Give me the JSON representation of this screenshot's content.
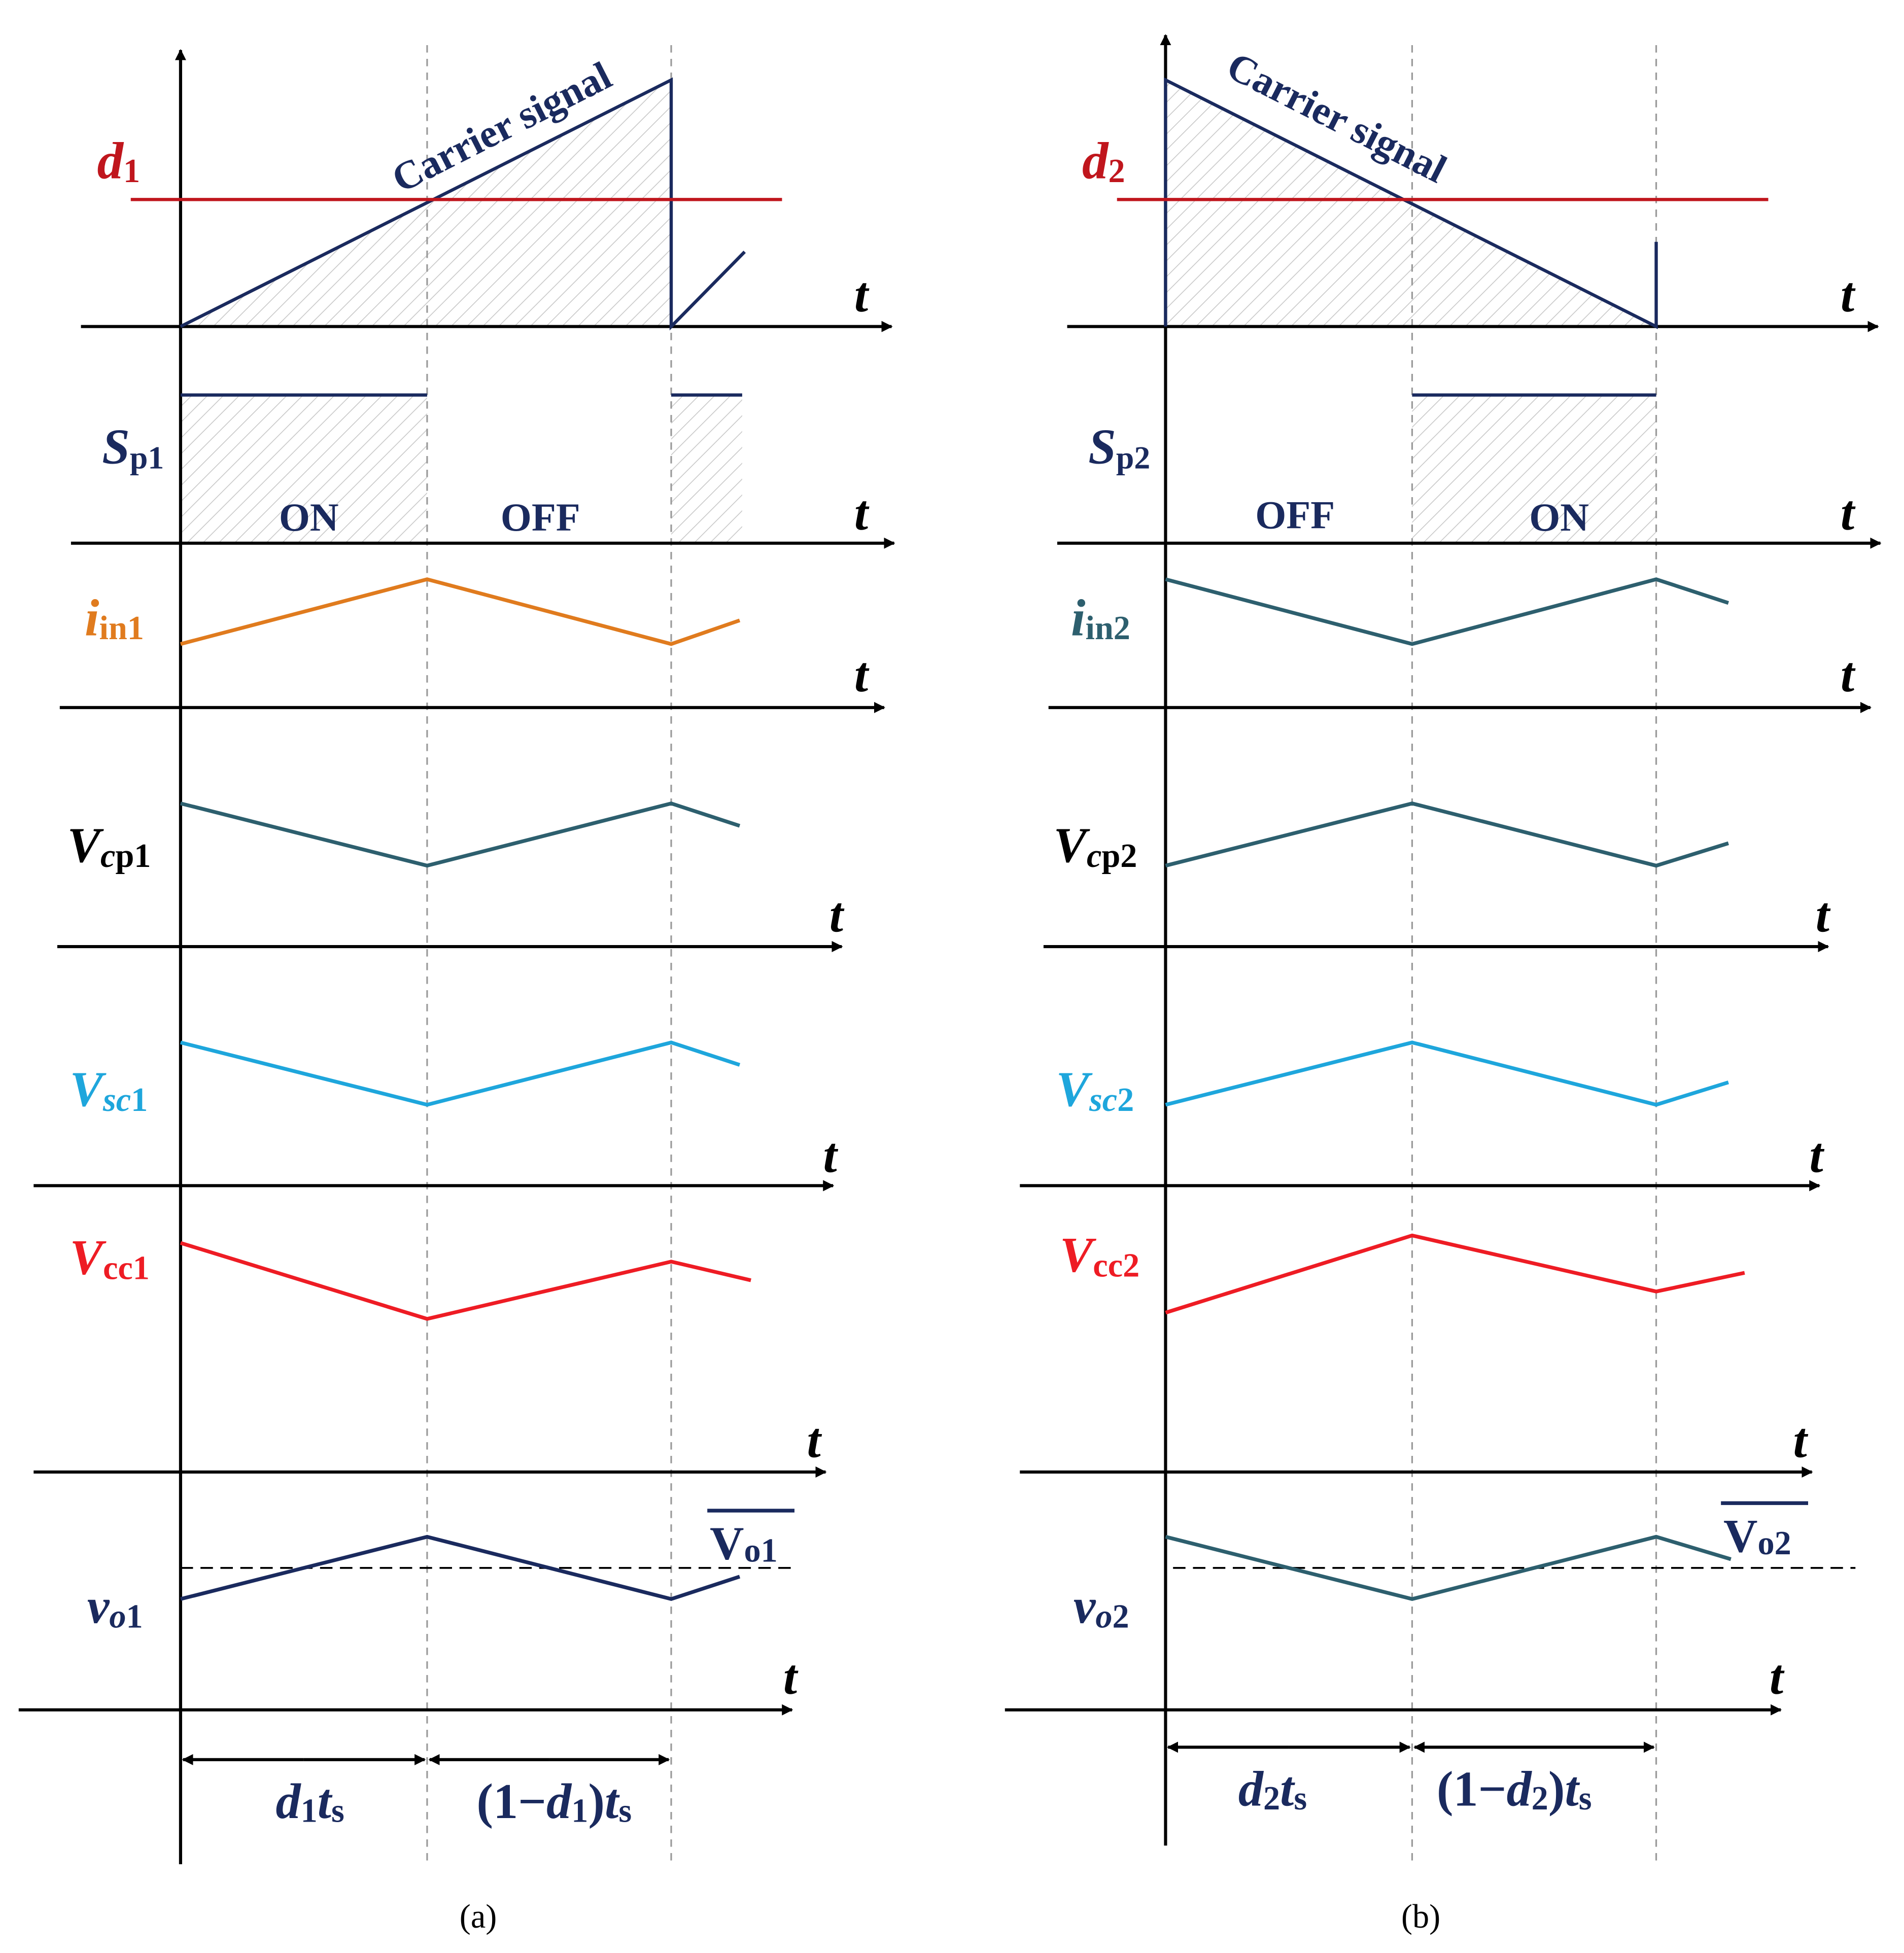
{
  "colors": {
    "navy": "#1a2a5e",
    "red_d": "#c0161d",
    "orange": "#e07b1e",
    "teal": "#2d5f6e",
    "cyan": "#1ea6dc",
    "red": "#ee1c24",
    "dash": "#9a9a9a",
    "hatch": "#c8c8c8"
  },
  "axis_symbol": "t",
  "carrier_label": "Carrier signal",
  "panels": [
    {
      "id": "a",
      "caption": "(a)",
      "duty": {
        "sym": "d",
        "sub": "1"
      },
      "switch": {
        "sym": "S",
        "sub": "p1",
        "first_state": "ON",
        "second_state": "OFF"
      },
      "signals": [
        {
          "key": "iin",
          "sym": "i",
          "sub": "in1",
          "style": "italic-sym"
        },
        {
          "key": "vcp",
          "sym": "V",
          "sub1": "c",
          "sub2": "p1"
        },
        {
          "key": "vsc",
          "sym": "V",
          "sub1": "sc",
          "sub2": "1"
        },
        {
          "key": "vcc",
          "sym": "V",
          "sub": "cc1"
        },
        {
          "key": "vo",
          "sym": "v",
          "sub1": "o",
          "sub2": "1"
        }
      ],
      "avg_label": {
        "sym": "V",
        "sub": "o1"
      },
      "interval1": {
        "parts": [
          "d",
          "1",
          "t",
          "s"
        ]
      },
      "interval2": {
        "parts": [
          "(1−",
          "d",
          "1",
          ")",
          "t",
          "s"
        ]
      }
    },
    {
      "id": "b",
      "caption": "(b)",
      "duty": {
        "sym": "d",
        "sub": "2"
      },
      "switch": {
        "sym": "S",
        "sub": "p2",
        "first_state": "OFF",
        "second_state": "ON"
      },
      "signals": [
        {
          "key": "iin",
          "sym": "i",
          "sub": "in2",
          "style": "italic-sym"
        },
        {
          "key": "vcp",
          "sym": "V",
          "sub1": "c",
          "sub2": "p2"
        },
        {
          "key": "vsc",
          "sym": "V",
          "sub1": "sc",
          "sub2": "2"
        },
        {
          "key": "vcc",
          "sym": "V",
          "sub": "cc2"
        },
        {
          "key": "vo",
          "sym": "v",
          "sub1": "o",
          "sub2": "2"
        }
      ],
      "avg_label": {
        "sym": "V",
        "sub": "o2"
      },
      "interval1": {
        "parts": [
          "d",
          "2",
          "t",
          "s"
        ]
      },
      "interval2": {
        "parts": [
          "(1−",
          "d",
          "2",
          ")",
          "t",
          "s"
        ]
      }
    }
  ]
}
